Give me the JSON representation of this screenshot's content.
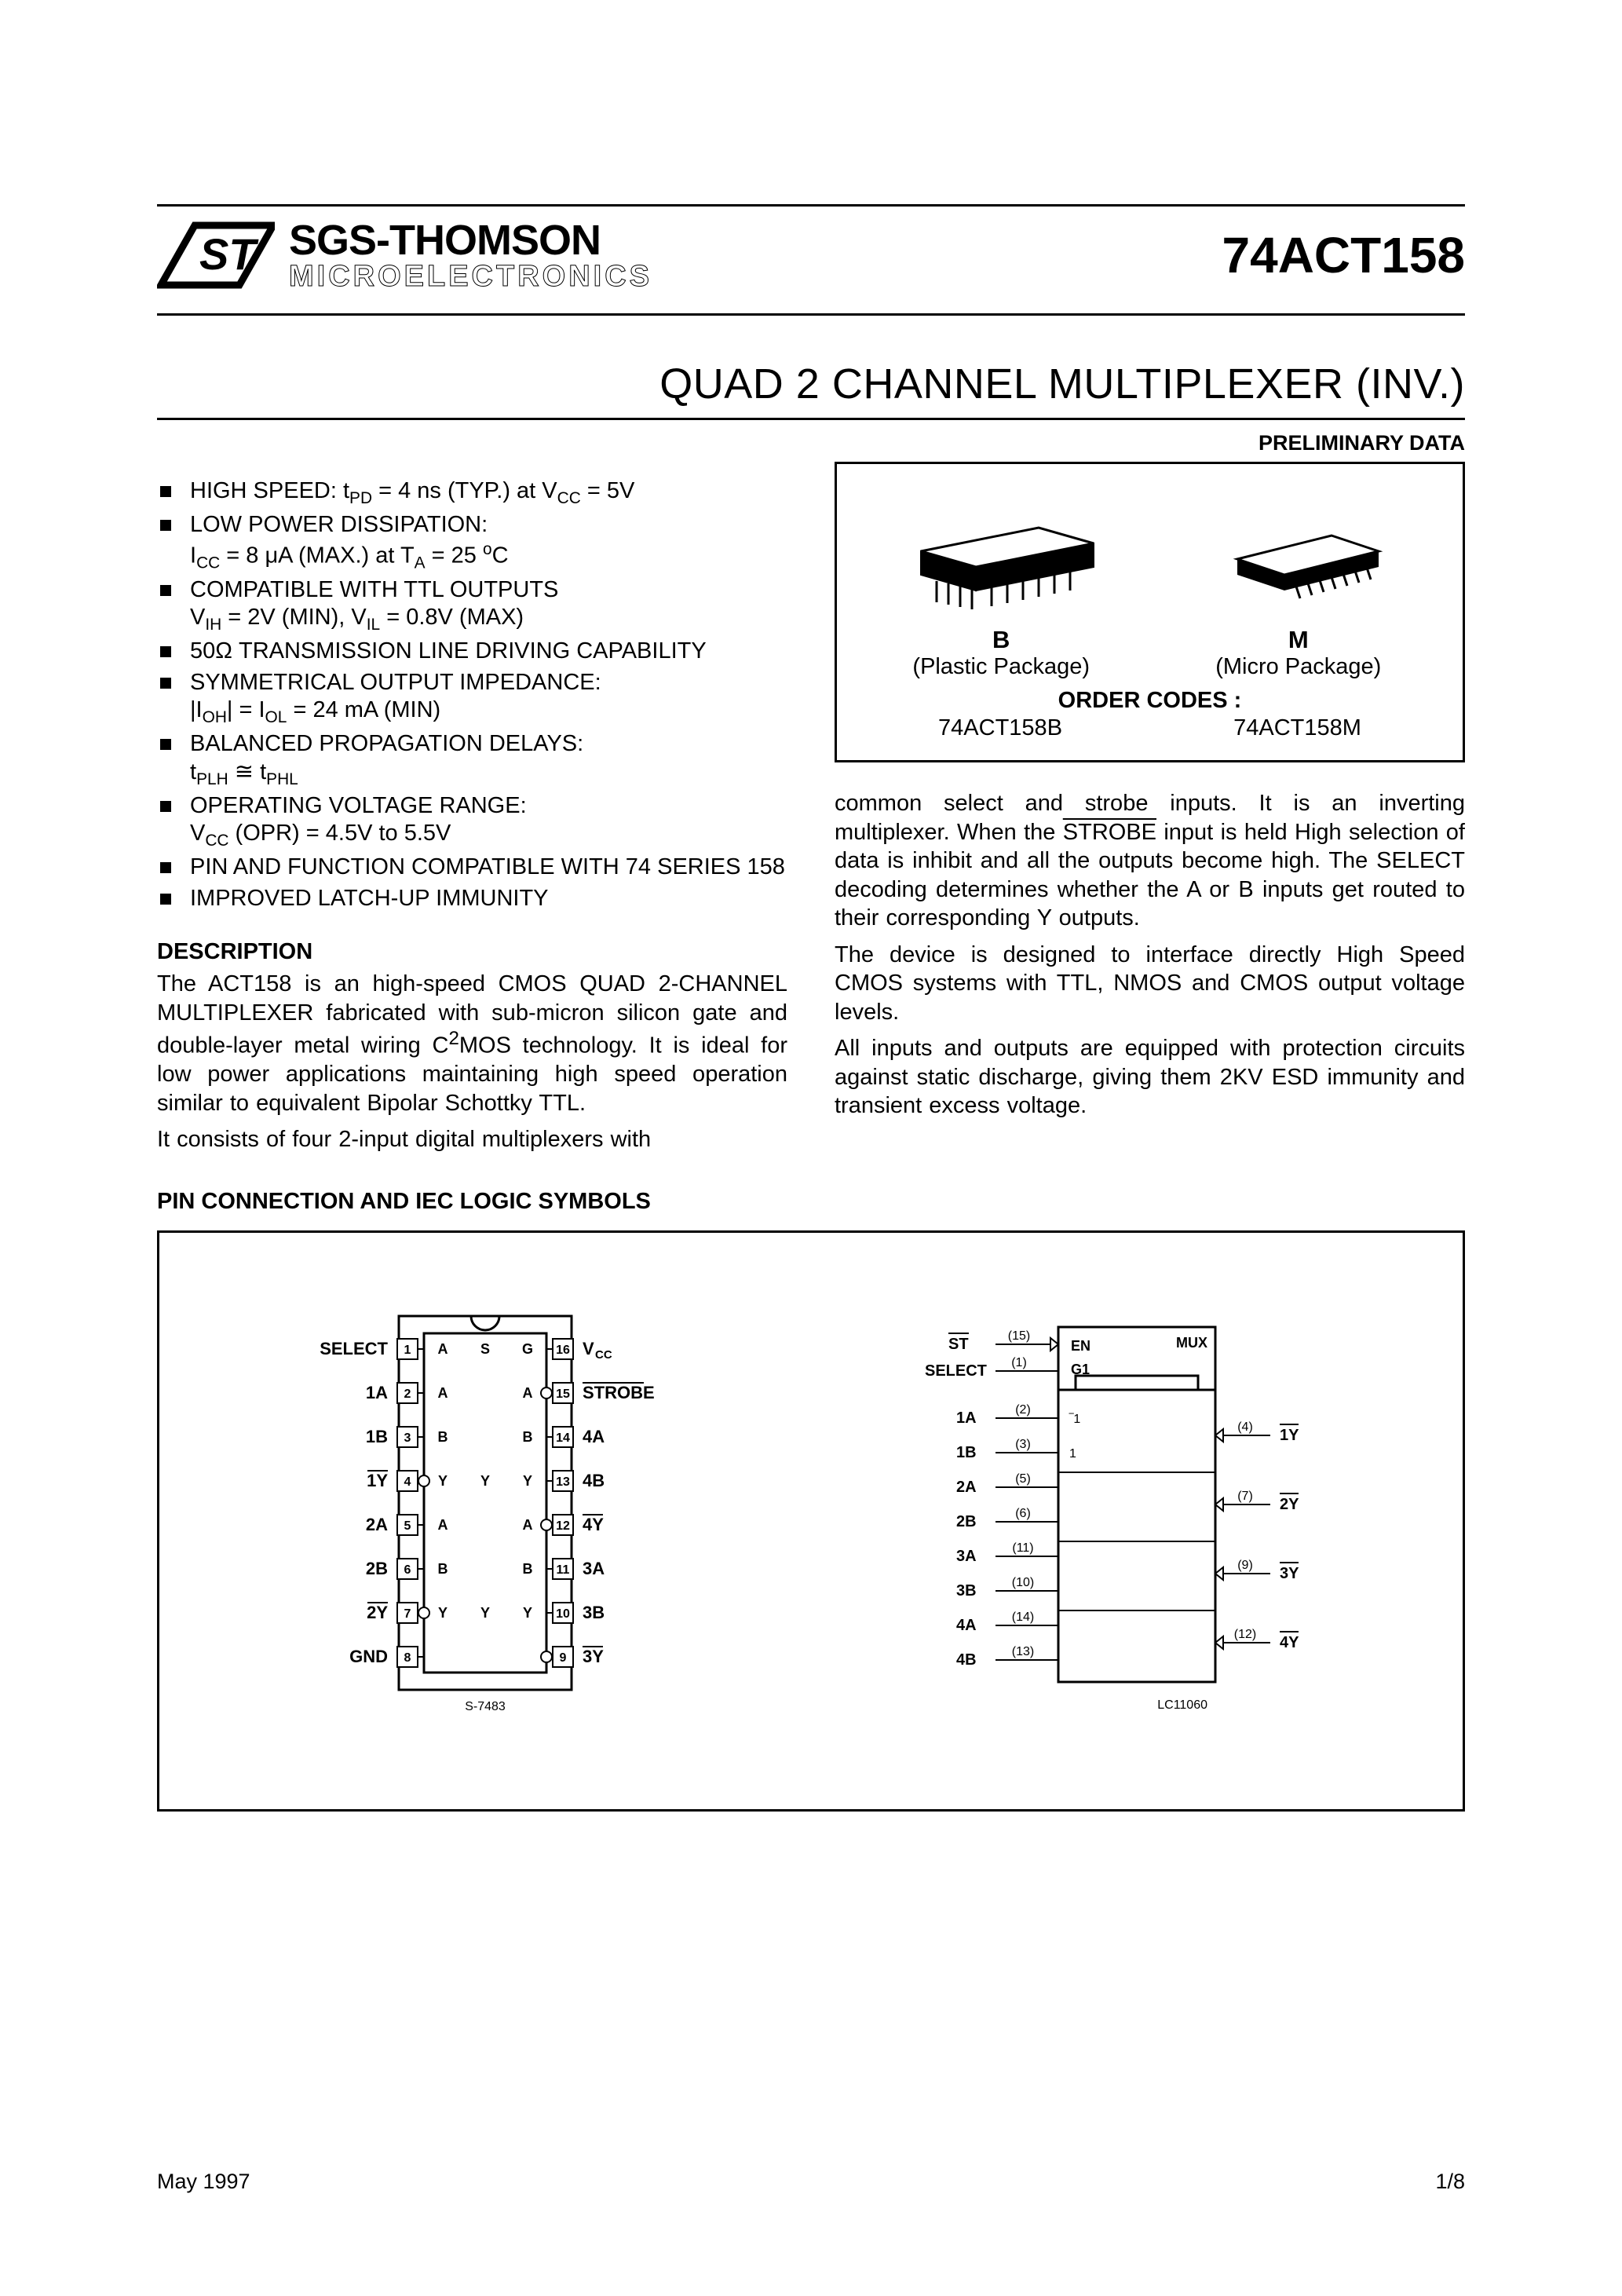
{
  "header": {
    "company_line1": "SGS-THOMSON",
    "company_line2": "MICROELECTRONICS",
    "part_number": "74ACT158",
    "title": "QUAD 2 CHANNEL MULTIPLEXER (INV.)",
    "preliminary": "PRELIMINARY DATA"
  },
  "features": [
    "HIGH SPEED: t<sub>PD</sub> = 4 ns (TYP.) at V<sub>CC</sub> = 5V",
    "LOW POWER DISSIPATION:<br>I<sub>CC</sub> = 8 μA (MAX.) at T<sub>A</sub> = 25 <sup>o</sup>C",
    "COMPATIBLE WITH TTL OUTPUTS<br>V<sub>IH</sub> = 2V (MIN), V<sub>IL</sub> = 0.8V (MAX)",
    "50Ω TRANSMISSION LINE DRIVING CAPABILITY",
    "SYMMETRICAL OUTPUT IMPEDANCE:<br>|I<sub>OH</sub>| = I<sub>OL</sub> = 24 mA (MIN)",
    "BALANCED PROPAGATION DELAYS:<br>t<sub>PLH</sub> ≅ t<sub>PHL</sub>",
    "OPERATING VOLTAGE RANGE:<br>V<sub>CC</sub> (OPR) = 4.5V to 5.5V",
    "PIN AND FUNCTION COMPATIBLE WITH 74 SERIES 158",
    "IMPROVED LATCH-UP IMMUNITY"
  ],
  "description_heading": "DESCRIPTION",
  "description_paragraphs": [
    "The ACT158 is an high-speed CMOS QUAD 2-CHANNEL MULTIPLEXER fabricated with sub-micron silicon gate and double-layer metal wiring C<sup>2</sup>MOS technology. It is ideal for low power applications maintaining high speed operation similar to equivalent Bipolar Schottky TTL.",
    "It consists of four 2-input digital multiplexers with"
  ],
  "description_right": [
    "common select and strobe inputs. It is an inverting multiplexer. When the <span class=\"ovl\">STROBE</span> input is held High selection of data is inhibit and all the outputs become high. The  SELECT decoding determines whether the A or B inputs get routed to their corresponding Y outputs.",
    "The device is designed to interface directly High Speed CMOS systems with TTL, NMOS and CMOS output voltage levels.",
    "All inputs and outputs are equipped with protection circuits against static discharge, giving them 2KV ESD immunity and transient excess voltage."
  ],
  "package_box": {
    "b_letter": "B",
    "b_name": "(Plastic Package)",
    "m_letter": "M",
    "m_name": "(Micro Package)",
    "order_codes_title": "ORDER CODES :",
    "code_b": "74ACT158B",
    "code_m": "74ACT158M"
  },
  "pin_section_heading": "PIN CONNECTION AND IEC LOGIC SYMBOLS",
  "pin_diagram": {
    "left_labels": [
      "SELECT",
      "1A",
      "1B",
      "1Y",
      "2A",
      "2B",
      "2Y",
      "GND"
    ],
    "left_overline": [
      false,
      false,
      false,
      true,
      false,
      false,
      true,
      false
    ],
    "right_labels": [
      "V_CC",
      "STROBE",
      "4A",
      "4B",
      "4Y",
      "3A",
      "3B",
      "3Y"
    ],
    "right_overline": [
      false,
      true,
      false,
      false,
      true,
      false,
      false,
      true
    ],
    "internal_rows": [
      [
        "A",
        "S",
        "G"
      ],
      [
        "A",
        "",
        "A"
      ],
      [
        "B",
        "",
        "B"
      ],
      [
        "Y",
        "Y",
        "Y"
      ],
      [
        "A",
        "",
        "A"
      ],
      [
        "B",
        "",
        "B"
      ],
      [
        "Y",
        "Y",
        "Y"
      ],
      [
        "",
        "",
        ""
      ]
    ],
    "ref": "S-7483"
  },
  "iec_diagram": {
    "inputs": [
      {
        "name": "ST",
        "pin": "(15)",
        "overline": true
      },
      {
        "name": "SELECT",
        "pin": "(1)",
        "overline": false
      },
      {
        "name": "1A",
        "pin": "(2)",
        "overline": false
      },
      {
        "name": "1B",
        "pin": "(3)",
        "overline": false
      },
      {
        "name": "2A",
        "pin": "(5)",
        "overline": false
      },
      {
        "name": "2B",
        "pin": "(6)",
        "overline": false
      },
      {
        "name": "3A",
        "pin": "(11)",
        "overline": false
      },
      {
        "name": "3B",
        "pin": "(10)",
        "overline": false
      },
      {
        "name": "4A",
        "pin": "(14)",
        "overline": false
      },
      {
        "name": "4B",
        "pin": "(13)",
        "overline": false
      }
    ],
    "outputs": [
      {
        "name": "1Y",
        "pin": "(4)",
        "overline": true
      },
      {
        "name": "2Y",
        "pin": "(7)",
        "overline": true
      },
      {
        "name": "3Y",
        "pin": "(9)",
        "overline": true
      },
      {
        "name": "4Y",
        "pin": "(12)",
        "overline": true
      }
    ],
    "header_labels": {
      "en": "EN",
      "g1": "G1",
      "i": "‾ī",
      "one": "1",
      "mux": "MUX"
    },
    "ref": "LC11060"
  },
  "footer": {
    "date": "May 1997",
    "page": "1/8"
  },
  "colors": {
    "text": "#000000",
    "bg": "#ffffff",
    "rule": "#000000"
  },
  "fonts": {
    "body_family": "Arial, Helvetica, sans-serif",
    "body_size_pt": 11,
    "title_size_pt": 20,
    "partno_size_pt": 24
  }
}
